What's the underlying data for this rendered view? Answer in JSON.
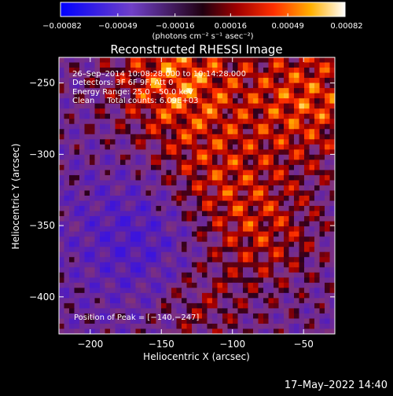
{
  "chart_data": {
    "type": "heatmap",
    "title": "Reconstructed RHESSI Image",
    "xlabel": "Heliocentric X (arcsec)",
    "ylabel": "Heliocentric Y (arcsec)",
    "xlim": [
      -222,
      -28
    ],
    "ylim": [
      -426,
      -232
    ],
    "x_ticks": [
      -200,
      -150,
      -100,
      -50
    ],
    "x_tick_labels": [
      "−200",
      "−150",
      "−100",
      "−50"
    ],
    "y_ticks": [
      -250,
      -300,
      -350,
      -400
    ],
    "y_tick_labels": [
      "−250",
      "−300",
      "−350",
      "−400"
    ],
    "colorbar": {
      "range": [
        -0.00082,
        0.00082
      ],
      "ticks": [
        -0.00082,
        -0.00049,
        -0.00016,
        0.00016,
        0.00049,
        0.00082
      ],
      "tick_labels": [
        "−0.00082",
        "−0.00049",
        "−0.00016",
        "0.00016",
        "0.00049",
        "0.00082"
      ],
      "units_label": "(photons cm⁻² s⁻¹ asec⁻²)"
    },
    "annotations": {
      "time": "26–Sep–2014 10:08:28.000 to 10:14:28.000",
      "detectors": "Detectors: 3F 6F 9F, Att 0",
      "energy": "Energy Range: 25.0 – 50.0 keV",
      "method": "Clean     Total counts: 6.09E+03",
      "peak": "Position of Peak = [−140,−247]"
    },
    "peak_position": [
      -140,
      -247
    ],
    "grid": false
  },
  "footer": {
    "timestamp": "17–May–2022 14:40"
  }
}
